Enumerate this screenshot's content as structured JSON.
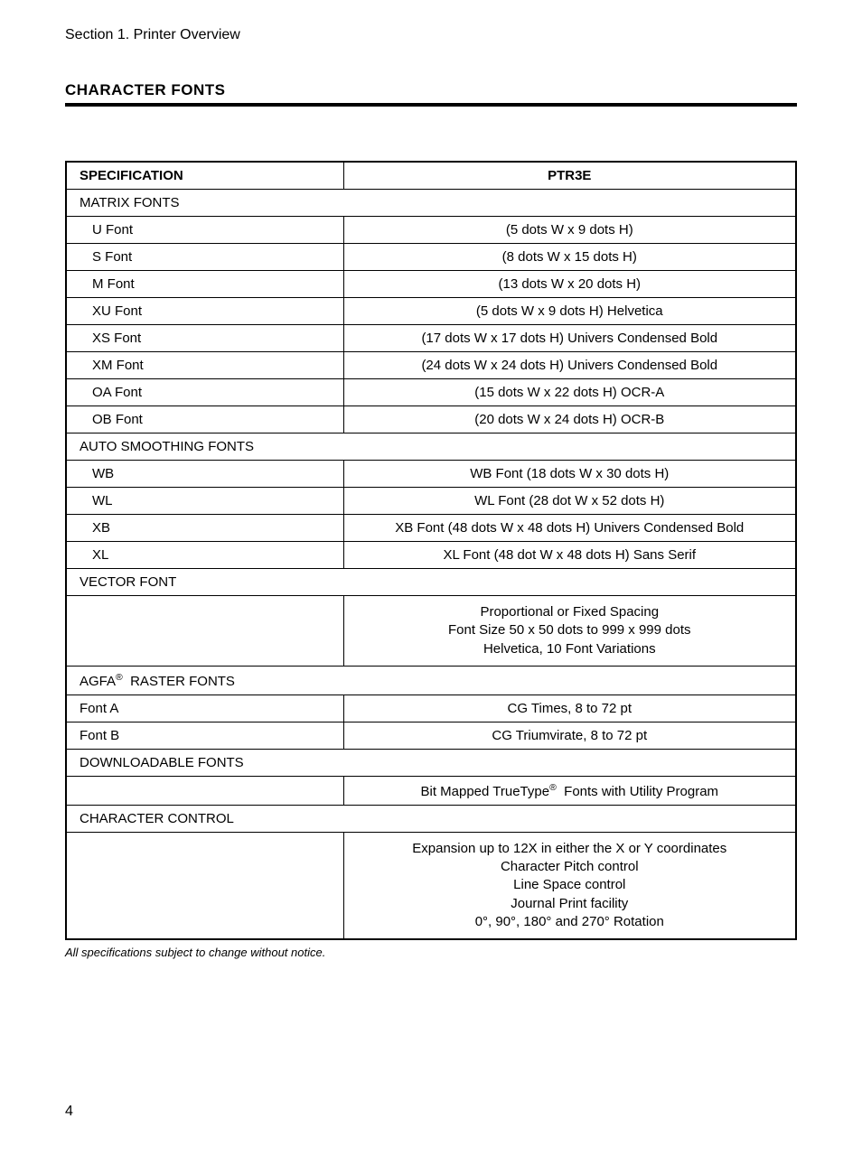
{
  "header": {
    "section": "Section 1. Printer Overview"
  },
  "title": "CHARACTER FONTS",
  "table": {
    "columns": {
      "spec": "SPECIFICATION",
      "val": "PTR3E"
    },
    "rows": [
      {
        "type": "section",
        "label": "MATRIX FONTS"
      },
      {
        "type": "data",
        "spec": "U Font",
        "val": "(5 dots W x 9 dots H)"
      },
      {
        "type": "data",
        "spec": "S Font",
        "val": "(8 dots W x 15 dots H)"
      },
      {
        "type": "data",
        "spec": "M Font",
        "val": "(13 dots W x 20 dots H)"
      },
      {
        "type": "data",
        "spec": "XU Font",
        "val": "(5 dots W x 9 dots H) Helvetica"
      },
      {
        "type": "data",
        "spec": "XS Font",
        "val": "(17 dots W x 17 dots H) Univers Condensed Bold"
      },
      {
        "type": "data",
        "spec": "XM Font",
        "val": "(24 dots W x 24 dots H) Univers Condensed Bold"
      },
      {
        "type": "data",
        "spec": "OA Font",
        "val": "(15 dots W x 22 dots H) OCR-A"
      },
      {
        "type": "data",
        "spec": "OB Font",
        "val": "(20 dots W x 24 dots H) OCR-B"
      },
      {
        "type": "section",
        "label": "AUTO SMOOTHING FONTS"
      },
      {
        "type": "data",
        "spec": "WB",
        "val": "WB Font (18 dots W x 30 dots H)"
      },
      {
        "type": "data",
        "spec": "WL",
        "val": "WL Font (28 dot W x 52 dots H)"
      },
      {
        "type": "data",
        "spec": "XB",
        "val": "XB Font (48 dots W x 48 dots H) Univers Condensed Bold"
      },
      {
        "type": "data",
        "spec": "XL",
        "val": "XL Font (48 dot W x 48 dots H) Sans Serif"
      },
      {
        "type": "section",
        "label": "VECTOR FONT"
      },
      {
        "type": "data",
        "spec": "",
        "val": "Proportional or Fixed Spacing<br>Font Size 50 x 50 dots to 999 x 999 dots<br>Helvetica, 10 Font Variations",
        "multiline": true
      },
      {
        "type": "section_html",
        "label": "AGFA<sup>®</sup>&nbsp; RASTER FONTS"
      },
      {
        "type": "data",
        "spec": "Font A",
        "val": "CG Times, 8 to 72 pt",
        "noindent": true
      },
      {
        "type": "data",
        "spec": "Font B",
        "val": "CG Triumvirate, 8 to 72 pt",
        "noindent": true
      },
      {
        "type": "section",
        "label": "DOWNLOADABLE FONTS"
      },
      {
        "type": "data",
        "spec": "",
        "val": "Bit Mapped TrueType<sup>®</sup>&nbsp; Fonts with Utility Program",
        "html": true
      },
      {
        "type": "section",
        "label": "CHARACTER CONTROL"
      },
      {
        "type": "data",
        "spec": "",
        "val": "Expansion up to 12X in either the X or Y coordinates<br>Character Pitch control<br>Line Space control<br>Journal Print facility<br>0°, 90°, 180° and 270° Rotation",
        "multiline": true
      }
    ]
  },
  "footnote": "All specifications subject to change without notice.",
  "page_number": "4"
}
